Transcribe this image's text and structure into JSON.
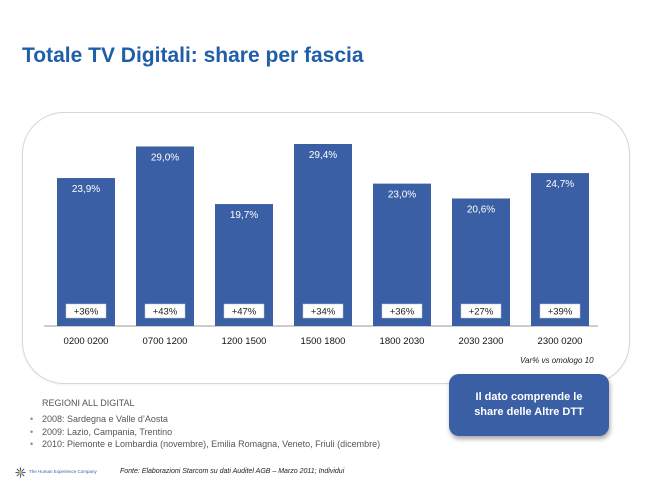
{
  "page": {
    "title": "Totale TV Digitali: share per fascia",
    "var_note": "Var% vs omologo 10",
    "regions_title": "REGIONI ALL DIGITAL",
    "regions": [
      "2008: Sardegna e Valle d’Aosta",
      "2009: Lazio, Campania, Trentino",
      "2010: Piemonte e Lombardia (novembre), Emilia Romagna, Veneto, Friuli (dicembre)"
    ],
    "callout": "Il dato comprende le share delle Altre DTT",
    "source": "Fonte: Elaborazioni Starcom su dati Auditel AGB – Marzo 2011; Individui",
    "logo_text": "The Human Experience Company",
    "logo_icon": "starburst-icon"
  },
  "colors": {
    "bar": "#3a5fa5",
    "title": "#1f5ea8",
    "callout": "#3a5fa5"
  },
  "chart_data": {
    "type": "bar",
    "categories": [
      "0200 0200",
      "0700 1200",
      "1200 1500",
      "1500 1800",
      "1800 2030",
      "2030 2300",
      "2300 0200"
    ],
    "values": [
      23.9,
      29.0,
      19.7,
      29.4,
      23.0,
      20.6,
      24.7
    ],
    "value_labels": [
      "23,9%",
      "29,0%",
      "19,7%",
      "29,4%",
      "23,0%",
      "20,6%",
      "24,7%"
    ],
    "variations": [
      "+36%",
      "+43%",
      "+47%",
      "+34%",
      "+36%",
      "+27%",
      "+39%"
    ],
    "title": "Totale TV Digitali: share per fascia",
    "xlabel": "",
    "ylabel": "",
    "ylim": [
      0,
      30
    ],
    "grid": false,
    "legend": "none"
  }
}
